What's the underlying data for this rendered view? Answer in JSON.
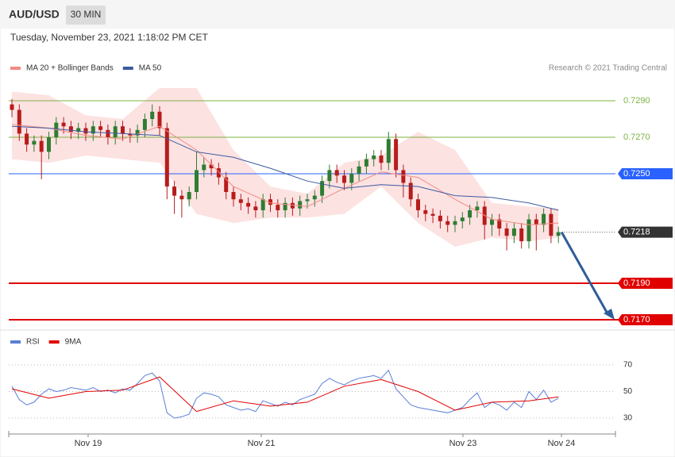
{
  "header": {
    "symbol": "AUD/USD",
    "timeframe": "30 MIN",
    "timestamp": "Tuesday, November 23, 2021 1:18:02 PM CET"
  },
  "chart_data": [
    {
      "type": "candlestick",
      "credit": "Research © 2021 Trading Central",
      "up_color": "#2e7d32",
      "down_color": "#b71c1c",
      "ylim": [
        0.7165,
        0.733
      ],
      "x_labels": [
        "Nov 19",
        "Nov 21",
        "Nov 23",
        "Nov 24"
      ],
      "open": [
        0.7288,
        0.7285,
        0.7272,
        0.7266,
        0.7268,
        0.7262,
        0.727,
        0.7278,
        0.7276,
        0.7273,
        0.7275,
        0.7272,
        0.7276,
        0.7274,
        0.727,
        0.7276,
        0.7272,
        0.7271,
        0.7274,
        0.728,
        0.7284,
        0.7275,
        0.7243,
        0.7238,
        0.7236,
        0.724,
        0.7252,
        0.7255,
        0.7253,
        0.7248,
        0.724,
        0.7236,
        0.7234,
        0.7232,
        0.723,
        0.7236,
        0.7233,
        0.723,
        0.7234,
        0.7231,
        0.7235,
        0.7236,
        0.7238,
        0.7246,
        0.7252,
        0.7249,
        0.7245,
        0.725,
        0.7254,
        0.7258,
        0.726,
        0.7256,
        0.7269,
        0.7252,
        0.7245,
        0.7236,
        0.723,
        0.7228,
        0.7227,
        0.7224,
        0.7222,
        0.7224,
        0.7226,
        0.723,
        0.7232,
        0.7222,
        0.7225,
        0.722,
        0.7216,
        0.722,
        0.7213,
        0.7225,
        0.7222,
        0.7228,
        0.7216
      ],
      "high": [
        0.7291,
        0.7288,
        0.7275,
        0.7271,
        0.7271,
        0.7273,
        0.7281,
        0.7281,
        0.7279,
        0.7278,
        0.7278,
        0.7279,
        0.7279,
        0.7277,
        0.7279,
        0.7279,
        0.7275,
        0.7277,
        0.7283,
        0.7288,
        0.7287,
        0.7278,
        0.7246,
        0.7241,
        0.7243,
        0.7262,
        0.7259,
        0.7258,
        0.7256,
        0.7251,
        0.7243,
        0.7239,
        0.7237,
        0.7235,
        0.7239,
        0.7239,
        0.7236,
        0.7237,
        0.7237,
        0.7238,
        0.7239,
        0.7241,
        0.7249,
        0.7255,
        0.7255,
        0.7252,
        0.7253,
        0.7257,
        0.7261,
        0.7263,
        0.7263,
        0.7273,
        0.7272,
        0.7255,
        0.7248,
        0.7239,
        0.7233,
        0.7231,
        0.723,
        0.7227,
        0.7227,
        0.7229,
        0.7233,
        0.7235,
        0.7235,
        0.7228,
        0.7228,
        0.7223,
        0.7223,
        0.7223,
        0.7228,
        0.7228,
        0.7231,
        0.7231,
        0.7221
      ],
      "low": [
        0.7281,
        0.7268,
        0.7262,
        0.7262,
        0.7247,
        0.7258,
        0.7266,
        0.7272,
        0.7269,
        0.7269,
        0.7268,
        0.7268,
        0.727,
        0.7266,
        0.7266,
        0.7268,
        0.7267,
        0.7267,
        0.727,
        0.7276,
        0.7271,
        0.7236,
        0.7228,
        0.7226,
        0.7232,
        0.7236,
        0.7248,
        0.7249,
        0.7244,
        0.7236,
        0.7232,
        0.723,
        0.7228,
        0.7226,
        0.7226,
        0.7229,
        0.7226,
        0.7226,
        0.7227,
        0.7227,
        0.7231,
        0.7232,
        0.7234,
        0.7242,
        0.7245,
        0.7241,
        0.7241,
        0.7246,
        0.725,
        0.7254,
        0.7252,
        0.7252,
        0.7248,
        0.7237,
        0.7232,
        0.7226,
        0.7224,
        0.7223,
        0.722,
        0.7218,
        0.7218,
        0.722,
        0.7222,
        0.7226,
        0.7214,
        0.7216,
        0.7216,
        0.7208,
        0.7212,
        0.7209,
        0.7209,
        0.7208,
        0.7218,
        0.7212,
        0.7212
      ],
      "close": [
        0.7285,
        0.7272,
        0.7266,
        0.7268,
        0.7262,
        0.727,
        0.7278,
        0.7276,
        0.7273,
        0.7275,
        0.7272,
        0.7276,
        0.7274,
        0.727,
        0.7276,
        0.7272,
        0.7271,
        0.7274,
        0.728,
        0.7284,
        0.7275,
        0.7243,
        0.7238,
        0.7236,
        0.724,
        0.7252,
        0.7255,
        0.7253,
        0.7248,
        0.724,
        0.7236,
        0.7234,
        0.7232,
        0.723,
        0.7236,
        0.7233,
        0.723,
        0.7234,
        0.7231,
        0.7235,
        0.7236,
        0.7238,
        0.7246,
        0.7252,
        0.7249,
        0.7245,
        0.725,
        0.7254,
        0.7258,
        0.726,
        0.7256,
        0.7269,
        0.7252,
        0.7245,
        0.7236,
        0.723,
        0.7228,
        0.7227,
        0.7224,
        0.7222,
        0.7224,
        0.7226,
        0.723,
        0.7232,
        0.7222,
        0.7225,
        0.722,
        0.7216,
        0.722,
        0.7213,
        0.7225,
        0.7222,
        0.7228,
        0.7216,
        0.7218
      ],
      "overlays": [
        {
          "name": "MA 20 + Bollinger Bands",
          "color": "#f28b82",
          "band_color": "#fde2e2",
          "x": [
            0,
            5,
            10,
            15,
            20,
            25,
            30,
            35,
            40,
            45,
            50,
            55,
            60,
            65,
            70,
            74
          ],
          "values": [
            0.7277,
            0.7275,
            0.7271,
            0.7269,
            0.7276,
            0.7263,
            0.7243,
            0.7234,
            0.7232,
            0.7242,
            0.7251,
            0.7248,
            0.7236,
            0.7225,
            0.7222,
            0.7223
          ],
          "upper": [
            0.7295,
            0.7293,
            0.7282,
            0.728,
            0.7297,
            0.7297,
            0.7263,
            0.7243,
            0.7239,
            0.7256,
            0.726,
            0.7273,
            0.7263,
            0.7234,
            0.7232,
            0.7231
          ],
          "lower": [
            0.7258,
            0.7256,
            0.726,
            0.7258,
            0.7256,
            0.7228,
            0.7223,
            0.7226,
            0.7226,
            0.7228,
            0.7243,
            0.7223,
            0.721,
            0.7215,
            0.7213,
            0.7215
          ]
        },
        {
          "name": "MA 50",
          "color": "#3b5aa0",
          "x": [
            0,
            5,
            10,
            15,
            20,
            25,
            30,
            35,
            40,
            45,
            50,
            55,
            60,
            65,
            70,
            74
          ],
          "values": [
            0.7276,
            0.7275,
            0.7273,
            0.7272,
            0.7271,
            0.7262,
            0.7259,
            0.7253,
            0.7246,
            0.7242,
            0.7244,
            0.7243,
            0.7238,
            0.7237,
            0.7234,
            0.723
          ]
        }
      ],
      "levels": [
        {
          "value": 0.729,
          "label": "0.7290",
          "color": "#7cb342",
          "boxed": false
        },
        {
          "value": 0.727,
          "label": "0.7270",
          "color": "#7cb342",
          "boxed": false
        },
        {
          "value": 0.725,
          "label": "0.7250",
          "color": "#2962ff",
          "boxed": true
        },
        {
          "value": 0.719,
          "label": "0.7190",
          "color": "#e00000",
          "boxed": true
        },
        {
          "value": 0.717,
          "label": "0.7170",
          "color": "#e00000",
          "boxed": true
        }
      ],
      "current": {
        "value": 0.7218,
        "color": "#333333"
      }
    },
    {
      "type": "line",
      "ylim": [
        20,
        94
      ],
      "yticks": [
        70,
        50,
        30
      ],
      "series": [
        {
          "name": "RSI",
          "color": "#5b7fd6",
          "values": [
            54,
            44,
            40,
            42,
            48,
            52,
            50,
            51,
            53,
            52,
            51,
            53,
            50,
            51,
            49,
            52,
            51,
            56,
            62,
            64,
            58,
            34,
            30,
            31,
            33,
            45,
            49,
            48,
            46,
            40,
            38,
            36,
            37,
            35,
            43,
            41,
            39,
            42,
            40,
            44,
            46,
            48,
            56,
            60,
            57,
            55,
            58,
            60,
            61,
            62,
            60,
            66,
            52,
            46,
            40,
            38,
            37,
            36,
            35,
            34,
            36,
            38,
            44,
            49,
            38,
            42,
            40,
            36,
            42,
            38,
            50,
            44,
            51,
            42,
            45
          ]
        },
        {
          "name": "9MA",
          "color": "#e00000",
          "x": [
            0,
            5,
            10,
            15,
            20,
            25,
            30,
            35,
            40,
            45,
            50,
            55,
            60,
            65,
            70,
            74
          ],
          "values": [
            52,
            45,
            50,
            51,
            61,
            35,
            43,
            39,
            42,
            54,
            59,
            50,
            36,
            42,
            43,
            46
          ]
        }
      ]
    }
  ]
}
